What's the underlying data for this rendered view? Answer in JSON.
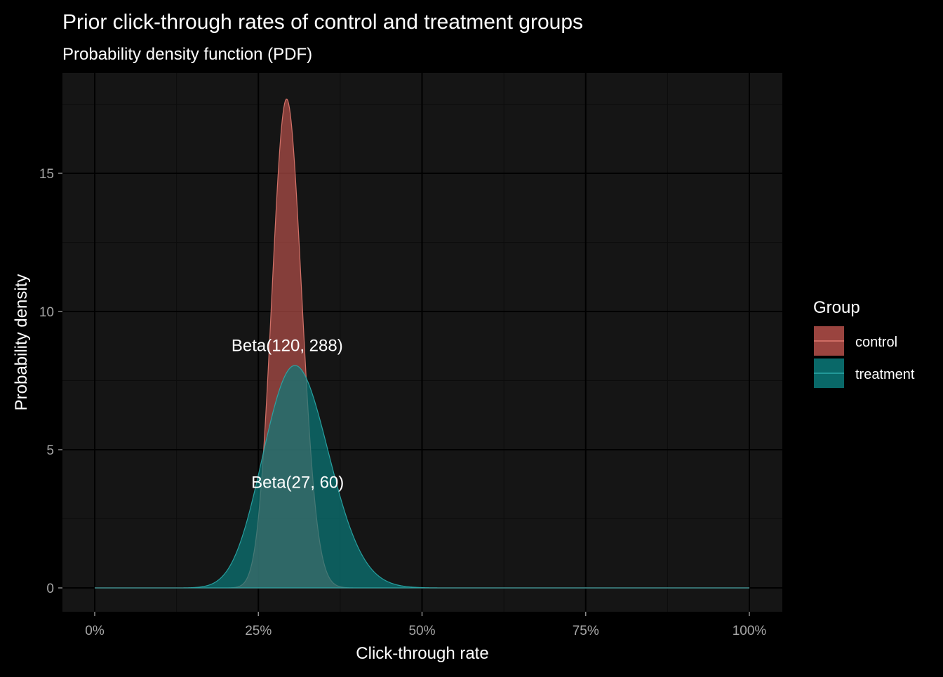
{
  "chart_data": {
    "type": "area",
    "title": "Prior click-through rates of control and treatment groups",
    "subtitle": "Probability density function (PDF)",
    "xlabel": "Click-through rate",
    "ylabel": "Probability density",
    "xlim": [
      0,
      1
    ],
    "ylim": [
      -0.9,
      18.6
    ],
    "x_ticks": [
      0,
      0.25,
      0.5,
      0.75,
      1
    ],
    "x_tick_labels": [
      "0%",
      "25%",
      "50%",
      "75%",
      "100%"
    ],
    "y_ticks": [
      0,
      5,
      10,
      15
    ],
    "y_tick_labels": [
      "0",
      "5",
      "10",
      "15"
    ],
    "grid": true,
    "legend": {
      "title": "Group",
      "position": "right"
    },
    "series": [
      {
        "name": "control",
        "distribution": "beta",
        "alpha": 120,
        "beta": 288,
        "fill": "#b5504a",
        "stroke": "#e07a70",
        "peak": 17.7
      },
      {
        "name": "treatment",
        "distribution": "beta",
        "alpha": 27,
        "beta": 60,
        "fill": "#0a7a7a",
        "stroke": "#2aa8a8",
        "peak": 8.1
      }
    ],
    "annotations": [
      {
        "text": "Beta(120, 288)",
        "x": 0.294,
        "y": 8.8
      },
      {
        "text": "Beta(27, 60)",
        "x": 0.31,
        "y": 3.85
      }
    ]
  },
  "colors": {
    "background": "#000000",
    "panel": "#151515",
    "grid_major": "#000000",
    "grid_minor": "#0c0c0c",
    "text": "#ffffff",
    "tick_text": "#a6a6a6"
  }
}
